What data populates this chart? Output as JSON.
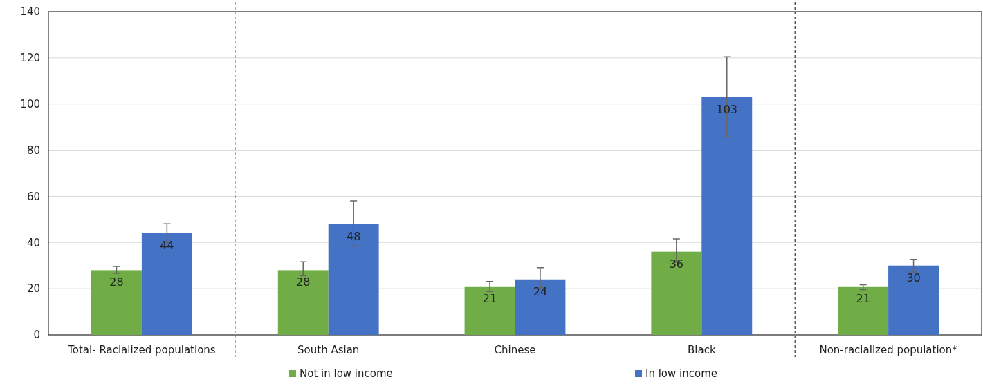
{
  "chart_data": {
    "type": "bar",
    "categories": [
      "Total- Racialized populations",
      "South Asian",
      "Chinese",
      "Black",
      "Non-racialized population*"
    ],
    "series": [
      {
        "name": "Not in low income",
        "color": "#70ad47",
        "values": [
          28,
          28,
          21,
          36,
          21
        ],
        "errors": [
          [
            26.6,
            29.6
          ],
          [
            25.6,
            31.6
          ],
          [
            18.8,
            23.1
          ],
          [
            31.9,
            41.6
          ],
          [
            19.6,
            21.7
          ]
        ]
      },
      {
        "name": "In low income",
        "color": "#4472c4",
        "values": [
          44,
          48,
          24,
          103,
          30
        ],
        "errors": [
          [
            39.9,
            48.1
          ],
          [
            38.6,
            58
          ],
          [
            20.4,
            29.1
          ],
          [
            85.8,
            120.5
          ],
          [
            27.2,
            32.7
          ]
        ]
      }
    ],
    "ylim": [
      0,
      140
    ],
    "yticks": [
      0,
      20,
      40,
      60,
      80,
      100,
      120,
      140
    ],
    "grid": "y",
    "legend": "bottom",
    "data_labels": true
  }
}
